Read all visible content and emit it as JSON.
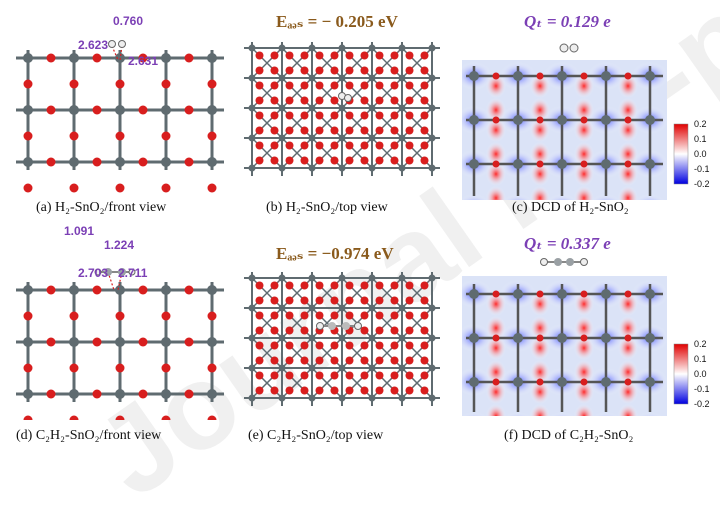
{
  "watermark": "Journal Pre-proof",
  "panels": {
    "a": {
      "caption": "(a) H₂-SnO₂/front view",
      "bond_labels": [
        "0.760",
        "2.623",
        "2.631"
      ]
    },
    "b": {
      "caption": "(b) H₂-SnO₂/top view",
      "eads": "Eₐₔₛ = − 0.205 eV"
    },
    "c": {
      "caption": "(c) DCD of H₂-SnO₂",
      "qt": "Qₜ = 0.129 e",
      "colorbar": [
        "0.2",
        "0.1",
        "0.0",
        "-0.1",
        "-0.2"
      ]
    },
    "d": {
      "caption": "(d) C₂H₂-SnO₂/front view",
      "bond_labels": [
        "1.091",
        "1.224",
        "2.703",
        "2.711"
      ]
    },
    "e": {
      "caption": "(e) C₂H₂-SnO₂/top view",
      "eads": "Eₐₔₛ = −0.974 eV"
    },
    "f": {
      "caption": "(f) DCD of C₂H₂-SnO₂",
      "qt": "Qₜ = 0.337 e",
      "colorbar": [
        "0.2",
        "0.1",
        "0.0",
        "-0.1",
        "-0.2"
      ]
    }
  },
  "colors": {
    "sn": "#5f6b70",
    "o": "#d81e1e",
    "label": "#7b3fb5",
    "eads": "#8a5a1c"
  }
}
